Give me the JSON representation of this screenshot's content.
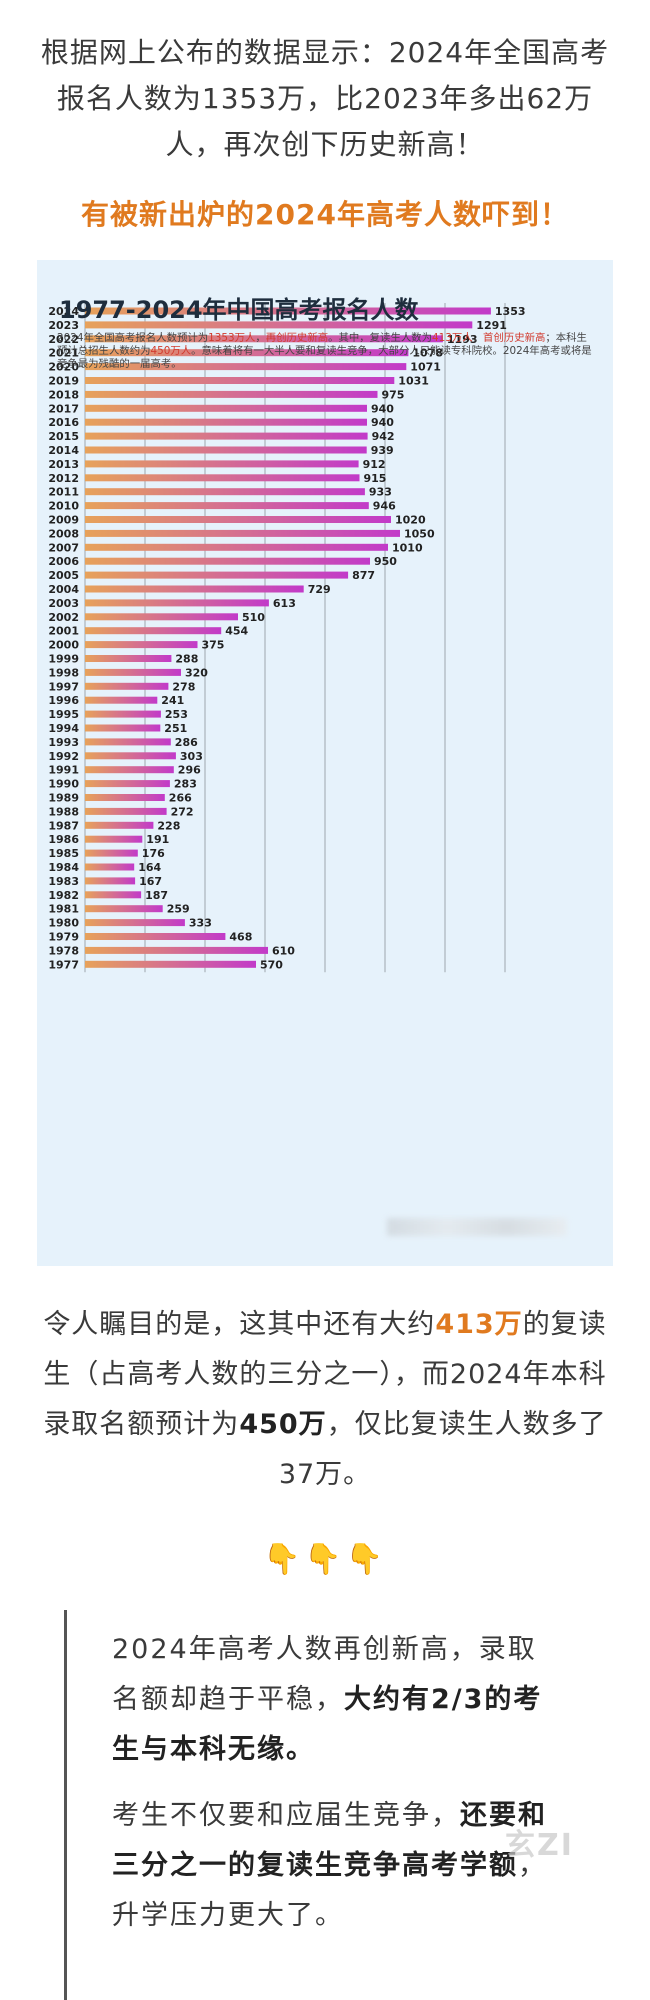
{
  "intro_text": "根据网上公布的数据显示：2024年全国高考报名人数为1353万，比2023年多出62万人，再次创下历史新高！",
  "headline": "有被新出炉的2024年高考人数吓到！",
  "chart_data": {
    "type": "bar",
    "orientation": "horizontal",
    "title": "1977-2024年中国高考报名人数",
    "subtitle_parts": {
      "p1": "2024年全国高考报名人数预计为",
      "h1": "1353万人",
      "p2": "，",
      "h2": "再创历史新高",
      "p3": "。其中，复读生人数为",
      "h3": "413万人",
      "p4": "，",
      "h4": "首创历史新高",
      "p5": "；本科生预计总招生人数约为",
      "h5": "450万人",
      "p6": "。意味着将有一大半人要和复读生竞争，大部分人只能读专科院校。2024年高考或将是竞争最为残酷的一届高考。"
    },
    "unit": "万人",
    "xlim": [
      0,
      1600
    ],
    "categories": [
      "2024",
      "2023",
      "2022",
      "2021",
      "2020",
      "2019",
      "2018",
      "2017",
      "2016",
      "2015",
      "2014",
      "2013",
      "2012",
      "2011",
      "2010",
      "2009",
      "2008",
      "2007",
      "2006",
      "2005",
      "2004",
      "2003",
      "2002",
      "2001",
      "2000",
      "1999",
      "1998",
      "1997",
      "1996",
      "1995",
      "1994",
      "1993",
      "1992",
      "1991",
      "1990",
      "1989",
      "1988",
      "1987",
      "1986",
      "1985",
      "1984",
      "1983",
      "1982",
      "1981",
      "1980",
      "1979",
      "1978",
      "1977"
    ],
    "values": [
      1353,
      1291,
      1193,
      1078,
      1071,
      1031,
      975,
      940,
      940,
      942,
      939,
      912,
      915,
      933,
      946,
      1020,
      1050,
      1010,
      950,
      877,
      729,
      613,
      510,
      454,
      375,
      288,
      320,
      278,
      241,
      253,
      251,
      286,
      303,
      296,
      283,
      266,
      272,
      228,
      191,
      176,
      164,
      167,
      187,
      259,
      333,
      468,
      610,
      570
    ]
  },
  "paragraph": {
    "a": "令人瞩目的是，这其中还有大约",
    "b": "413万",
    "c": "的复读生（占高考人数的三分之一），而2024年本科录取名额预计为",
    "d": "450万",
    "e": "，仅比复读生人数多了37万。"
  },
  "emoji": "👇👇👇",
  "quote": {
    "p1_a": "2024年高考人数再创新高，录取名额却趋于平稳，",
    "p1_b": "大约有2/3的考生与本科无缘。",
    "p2_a": "考生不仅要和应届生竞争，",
    "p2_b": "还要和三分之一的复读生竞争高考学额",
    "p2_c": "，升学压力更大了。"
  },
  "watermark": "玄ZI",
  "colors": {
    "accent": "#e07a1f",
    "bar_left": "#e7a25a",
    "bar_right": "#c23ac9",
    "panel_bg": "#e6f2fb"
  }
}
